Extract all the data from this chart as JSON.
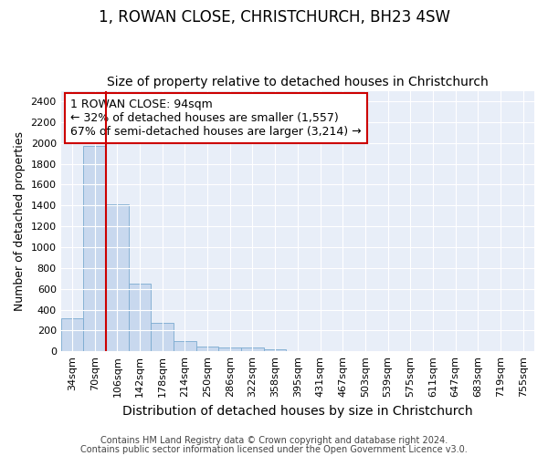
{
  "title": "1, ROWAN CLOSE, CHRISTCHURCH, BH23 4SW",
  "subtitle": "Size of property relative to detached houses in Christchurch",
  "xlabel": "Distribution of detached houses by size in Christchurch",
  "ylabel": "Number of detached properties",
  "categories": [
    "34sqm",
    "70sqm",
    "106sqm",
    "142sqm",
    "178sqm",
    "214sqm",
    "250sqm",
    "286sqm",
    "322sqm",
    "358sqm",
    "395sqm",
    "431sqm",
    "467sqm",
    "503sqm",
    "539sqm",
    "575sqm",
    "611sqm",
    "647sqm",
    "683sqm",
    "719sqm",
    "755sqm"
  ],
  "values": [
    320,
    1970,
    1410,
    650,
    275,
    100,
    48,
    40,
    35,
    22,
    0,
    0,
    0,
    0,
    0,
    0,
    0,
    0,
    0,
    0,
    0
  ],
  "bar_color": "#c8d8ee",
  "bar_edgecolor": "#7aaad0",
  "vline_index": 1.5,
  "vline_color": "#cc0000",
  "annotation_text": "1 ROWAN CLOSE: 94sqm\n← 32% of detached houses are smaller (1,557)\n67% of semi-detached houses are larger (3,214) →",
  "annotation_box_edgecolor": "#cc0000",
  "annotation_box_facecolor": "#ffffff",
  "ylim": [
    0,
    2500
  ],
  "yticks": [
    0,
    200,
    400,
    600,
    800,
    1000,
    1200,
    1400,
    1600,
    1800,
    2000,
    2200,
    2400
  ],
  "footnote1": "Contains HM Land Registry data © Crown copyright and database right 2024.",
  "footnote2": "Contains public sector information licensed under the Open Government Licence v3.0.",
  "plot_bg_color": "#e8eef8",
  "title_fontsize": 12,
  "subtitle_fontsize": 10,
  "xlabel_fontsize": 10,
  "ylabel_fontsize": 9,
  "tick_fontsize": 8,
  "footnote_fontsize": 7
}
